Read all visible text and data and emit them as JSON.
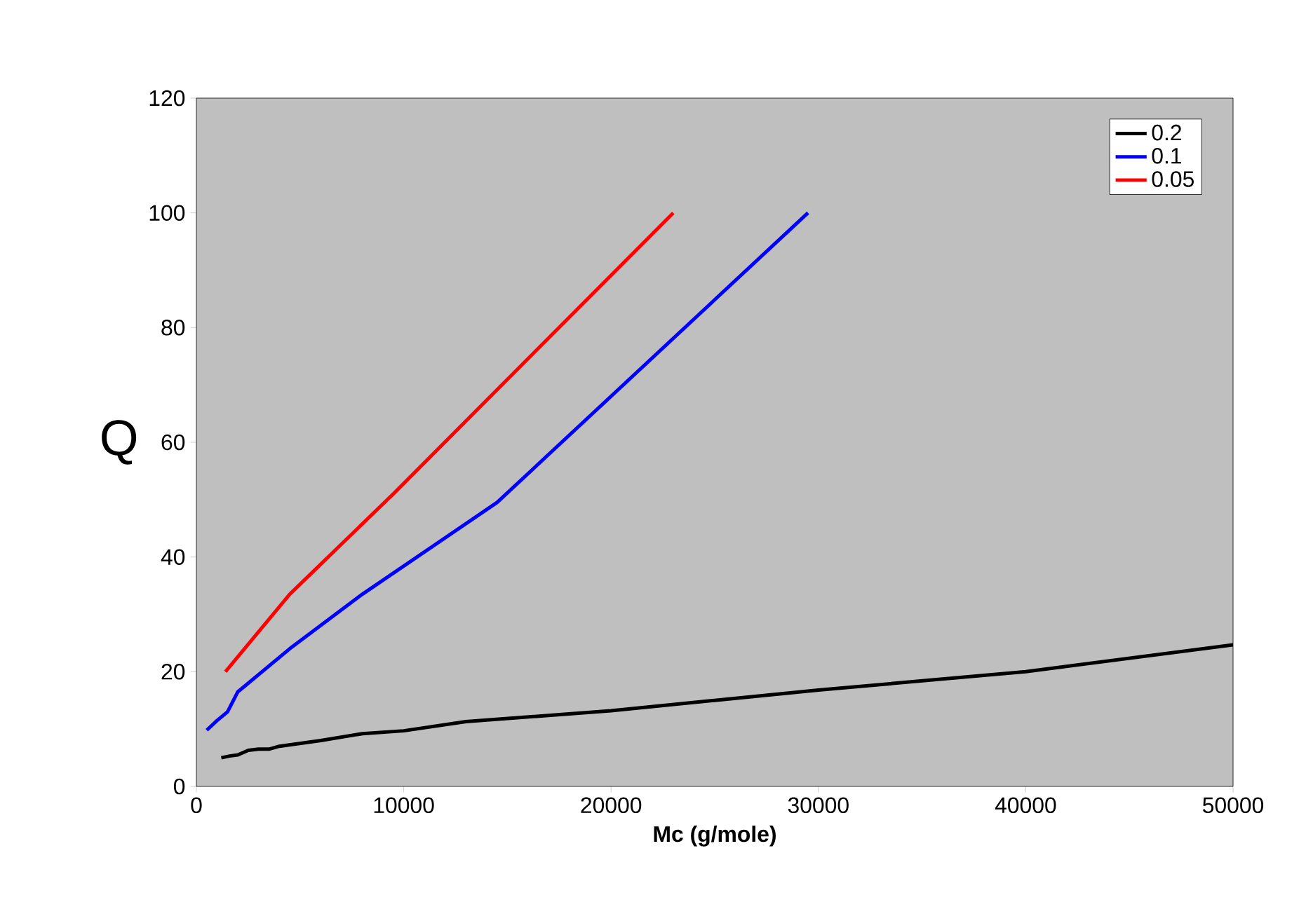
{
  "chart_data": {
    "type": "line",
    "xlabel": "Mc (g/mole)",
    "ylabel": "Q",
    "xlim": [
      0,
      50000
    ],
    "ylim": [
      0,
      120
    ],
    "xticks": [
      0,
      10000,
      20000,
      30000,
      40000,
      50000
    ],
    "yticks": [
      0,
      20,
      40,
      60,
      80,
      100,
      120
    ],
    "grid": false,
    "legend": "top right",
    "marker": "none",
    "line_style": "solid",
    "series": [
      {
        "name": "0.2",
        "color": "#000000",
        "x": [
          1200,
          1600,
          2000,
          2500,
          3000,
          3500,
          4000,
          6000,
          8000,
          10000,
          13000,
          20000,
          25000,
          30000,
          40000,
          50000
        ],
        "values": [
          5,
          5.3,
          5.5,
          6.3,
          6.5,
          6.5,
          7,
          8,
          9.2,
          9.7,
          11.3,
          13.2,
          15,
          16.8,
          20,
          24.7
        ]
      },
      {
        "name": "0.1",
        "color": "#0000ff",
        "x": [
          500,
          1000,
          1500,
          2000,
          4500,
          8000,
          14500,
          29500
        ],
        "values": [
          9.8,
          11.5,
          13,
          16.5,
          24,
          33.5,
          49.5,
          100
        ]
      },
      {
        "name": "0.05",
        "color": "#ff0000",
        "x": [
          1400,
          4500,
          9500,
          23000
        ],
        "values": [
          20,
          33.5,
          51,
          100
        ]
      }
    ]
  }
}
